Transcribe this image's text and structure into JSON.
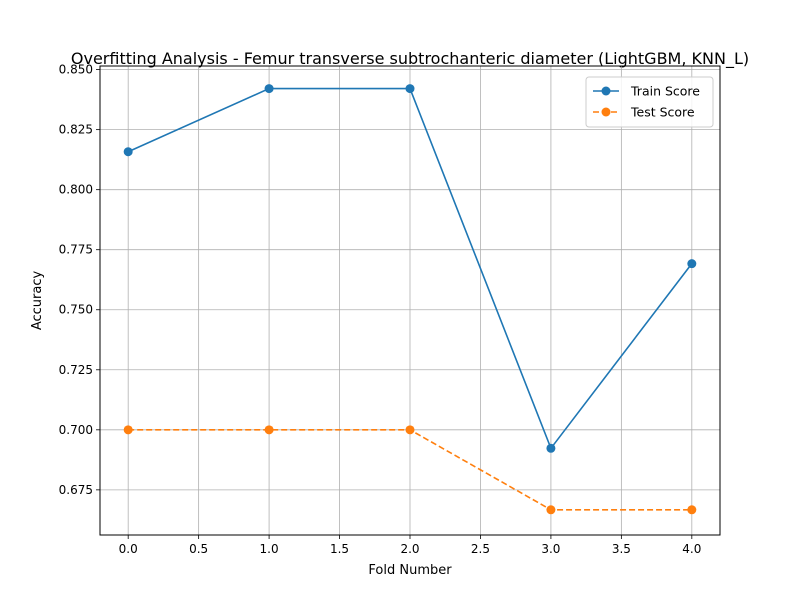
{
  "chart_data": {
    "type": "line",
    "title": "Overfitting Analysis - Femur transverse subtrochanteric diameter (LightGBM, KNN_L)",
    "xlabel": "Fold Number",
    "ylabel": "Accuracy",
    "x": [
      0,
      1,
      2,
      3,
      4
    ],
    "xlim": [
      -0.2,
      4.2
    ],
    "ylim": [
      0.6562,
      0.8515
    ],
    "xticks": [
      0.0,
      0.5,
      1.0,
      1.5,
      2.0,
      2.5,
      3.0,
      3.5,
      4.0
    ],
    "yticks": [
      0.675,
      0.7,
      0.725,
      0.75,
      0.775,
      0.8,
      0.825,
      0.85
    ],
    "grid": true,
    "legend_position": "top-right",
    "series": [
      {
        "name": "Train Score",
        "values": [
          0.8158,
          0.8421,
          0.8421,
          0.6923,
          0.7692
        ],
        "color": "#1f77b4",
        "dash": "solid",
        "marker": "circle"
      },
      {
        "name": "Test Score",
        "values": [
          0.7,
          0.7,
          0.7,
          0.6667,
          0.6667
        ],
        "color": "#ff7f0e",
        "dash": "dashed",
        "marker": "circle"
      }
    ]
  }
}
